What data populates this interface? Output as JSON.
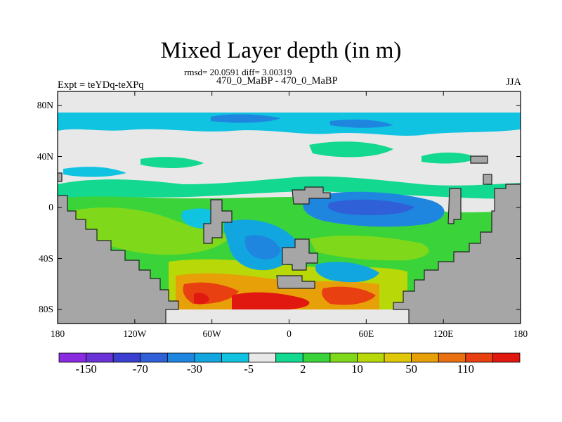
{
  "title": "Mixed Layer depth (in m)",
  "stats": "rmsd= 20.0591 diff= 3.00319",
  "runs": "470_0_MaBP - 470_0_MaBP",
  "experiment": "Expt = teYDq-teXPq",
  "season": "JJA",
  "lat_ticks": [
    {
      "label": "80N",
      "value": 80
    },
    {
      "label": "40N",
      "value": 40
    },
    {
      "label": "0",
      "value": 0
    },
    {
      "label": "40S",
      "value": -40
    },
    {
      "label": "80S",
      "value": -80
    }
  ],
  "lon_ticks": [
    {
      "label": "180",
      "value": -180
    },
    {
      "label": "120W",
      "value": -120
    },
    {
      "label": "60W",
      "value": -60
    },
    {
      "label": "0",
      "value": 0
    },
    {
      "label": "60E",
      "value": 60
    },
    {
      "label": "120E",
      "value": 120
    },
    {
      "label": "180",
      "value": 180
    }
  ],
  "colorbar": {
    "colors": [
      "#8a2be2",
      "#6a33d8",
      "#3a3fd0",
      "#2f60d8",
      "#1f86e0",
      "#12a6e0",
      "#10c3e0",
      "#e8e8e8",
      "#12d890",
      "#3ad43a",
      "#7fd81a",
      "#b8d808",
      "#e0c808",
      "#e8a008",
      "#e87010",
      "#e84010",
      "#e01810"
    ],
    "labels": [
      {
        "text": "-150",
        "index": 1
      },
      {
        "text": "-70",
        "index": 3
      },
      {
        "text": "-30",
        "index": 5
      },
      {
        "text": "-5",
        "index": 7
      },
      {
        "text": "2",
        "index": 9
      },
      {
        "text": "10",
        "index": 11
      },
      {
        "text": "50",
        "index": 13
      },
      {
        "text": "110",
        "index": 15
      }
    ]
  },
  "colors": {
    "land": "#a6a6a6",
    "background_field": "#e8e8e8"
  }
}
